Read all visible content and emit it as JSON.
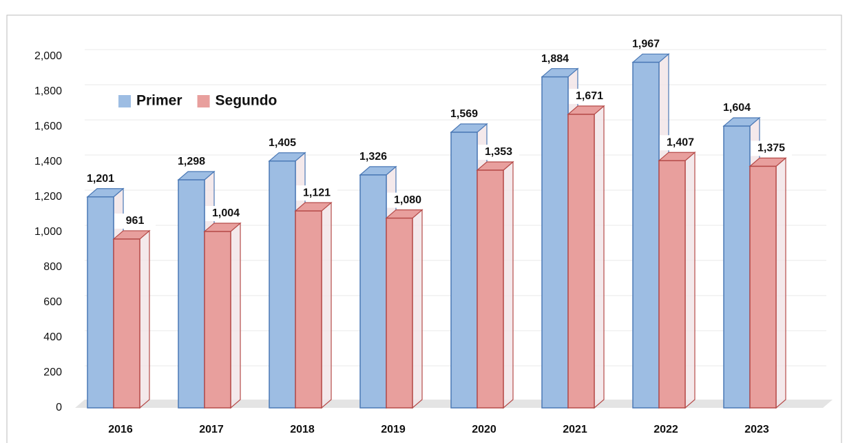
{
  "chart_data": {
    "type": "bar",
    "categories": [
      "2016",
      "2017",
      "2018",
      "2019",
      "2020",
      "2021",
      "2022",
      "2023"
    ],
    "series": [
      {
        "name": "Primer",
        "color": "#9dbde3",
        "values": [
          1201,
          1298,
          1405,
          1326,
          1569,
          1884,
          1967,
          1604
        ],
        "value_labels": [
          "1,201",
          "1,298",
          "1,405",
          "1,326",
          "1,569",
          "1,884",
          "1,967",
          "1,604"
        ]
      },
      {
        "name": "Segundo",
        "color": "#e89f9d",
        "values": [
          961,
          1004,
          1121,
          1080,
          1353,
          1671,
          1407,
          1375
        ],
        "value_labels": [
          "961",
          "1,004",
          "1,121",
          "1,080",
          "1,353",
          "1,671",
          "1,407",
          "1,375"
        ]
      }
    ],
    "ylim": [
      0,
      2000
    ],
    "yticks": [
      0,
      200,
      400,
      600,
      800,
      {
        "value": 1000,
        "label": "1,000"
      },
      {
        "value": 1200,
        "label": "1,200"
      },
      {
        "value": 1400,
        "label": "1,400"
      },
      {
        "value": 1600,
        "label": "1,600"
      },
      {
        "value": 1800,
        "label": "1,800"
      },
      {
        "value": 2000,
        "label": "2,000"
      }
    ],
    "grid": true,
    "legend": "upper left"
  }
}
